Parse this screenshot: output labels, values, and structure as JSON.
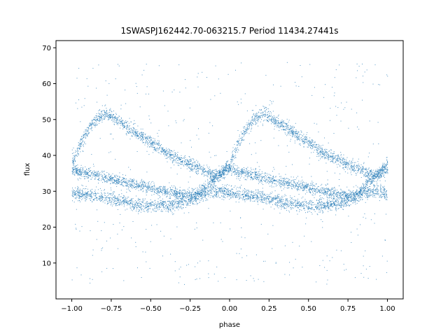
{
  "chart_data": {
    "type": "scatter",
    "title": "1SWASPJ162442.70-063215.7 Period 11434.27441s",
    "xlabel": "phase",
    "ylabel": "flux",
    "xlim": [
      -1.1,
      1.1
    ],
    "ylim": [
      0,
      72
    ],
    "xticks": [
      -1.0,
      -0.75,
      -0.5,
      -0.25,
      0.0,
      0.25,
      0.5,
      0.75,
      1.0
    ],
    "xtick_labels": [
      "−1.00",
      "−0.75",
      "−0.50",
      "−0.25",
      "0.00",
      "0.25",
      "0.50",
      "0.75",
      "1.00"
    ],
    "yticks": [
      10,
      20,
      30,
      40,
      50,
      60,
      70
    ],
    "ytick_labels": [
      "10",
      "20",
      "30",
      "40",
      "50",
      "60",
      "70"
    ],
    "grid": false,
    "marker_color": "#1f77b4",
    "series": [
      {
        "description_points": "phase-folded light curve, repeated over two cycles",
        "x": [
          -1.0,
          -0.95,
          -0.9,
          -0.85,
          -0.8,
          -0.75,
          -0.7,
          -0.65,
          -0.6,
          -0.55,
          -0.5,
          -0.45,
          -0.4,
          -0.35,
          -0.3,
          -0.25,
          -0.2,
          -0.15,
          -0.1,
          -0.05,
          0.0,
          0.05,
          0.1,
          0.15,
          0.2,
          0.25,
          0.3,
          0.35,
          0.4,
          0.45,
          0.5,
          0.55,
          0.6,
          0.65,
          0.7,
          0.75,
          0.8,
          0.85,
          0.9,
          0.95,
          1.0
        ],
        "upper_branch": [
          38,
          43,
          47,
          50,
          51.5,
          51,
          49.5,
          48,
          46.5,
          45,
          43.5,
          42,
          40.5,
          39.5,
          38.5,
          37.5,
          36.5,
          35.5,
          34.5,
          35,
          38,
          43,
          47,
          50,
          51.5,
          51,
          49.5,
          48,
          46.5,
          45,
          43.5,
          42,
          40.5,
          39.5,
          38.5,
          37.5,
          36.5,
          35.5,
          34.5,
          35,
          38
        ],
        "middle_branch": [
          36,
          35.5,
          35,
          34.5,
          34,
          33.5,
          33,
          32.5,
          32,
          31.5,
          31,
          30.5,
          30,
          29.5,
          29,
          29,
          29.5,
          31,
          33.5,
          35.5,
          36.5,
          35.5,
          35,
          34.5,
          34,
          33.5,
          33,
          32.5,
          32,
          31.5,
          31,
          30.5,
          30,
          29.5,
          29,
          29,
          29.5,
          31,
          33.5,
          35.5,
          36
        ],
        "lower_branch": [
          29.5,
          29.2,
          29,
          28.8,
          28.5,
          28,
          27.5,
          27,
          26.5,
          26.2,
          26,
          26,
          26.2,
          26.5,
          27,
          27.5,
          28.5,
          29.5,
          30,
          30,
          29.5,
          29.2,
          29,
          28.8,
          28.5,
          28,
          27.5,
          27,
          26.5,
          26.2,
          26,
          26,
          26.2,
          26.5,
          27,
          27.5,
          28.5,
          29.5,
          30,
          30,
          29.5
        ]
      }
    ]
  }
}
